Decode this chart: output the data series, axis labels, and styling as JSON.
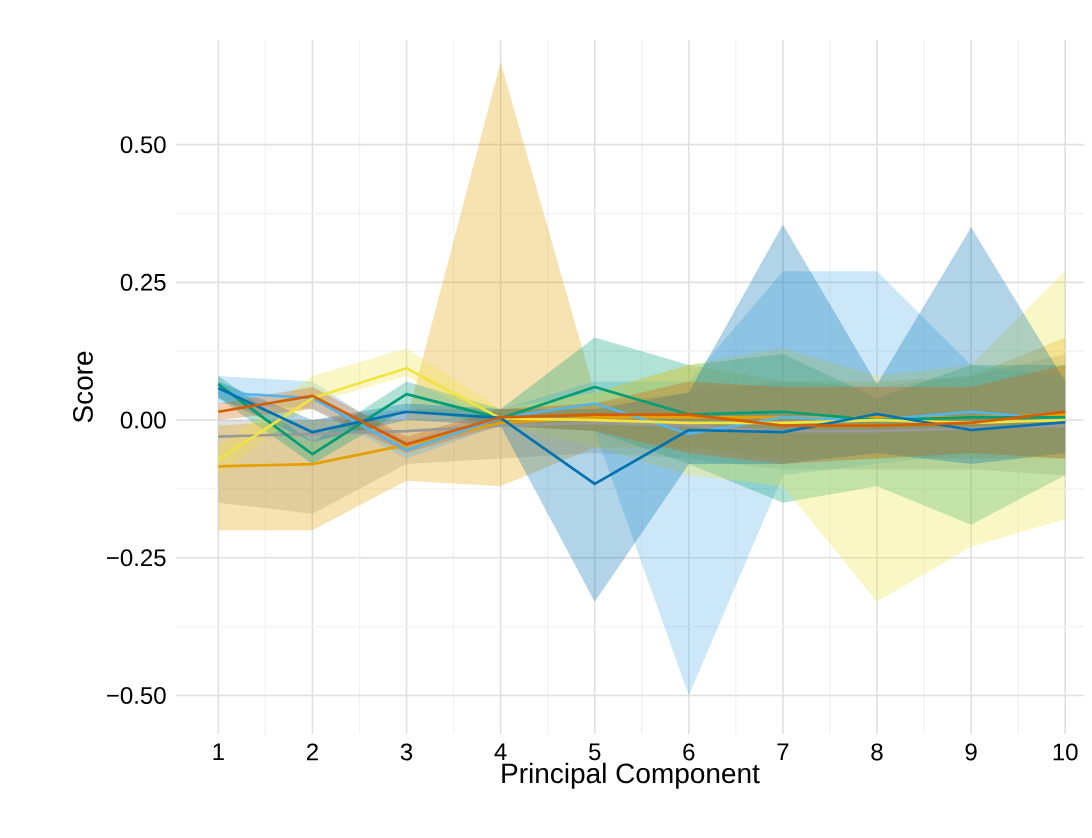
{
  "chart_data": {
    "type": "line",
    "xlabel": "Principal Component",
    "ylabel": "Score",
    "x": [
      1,
      2,
      3,
      4,
      5,
      6,
      7,
      8,
      9,
      10
    ],
    "xlim": [
      0.55,
      10.2
    ],
    "ylim": [
      -0.57,
      0.69
    ],
    "xticks": [
      1,
      2,
      3,
      4,
      5,
      6,
      7,
      8,
      9,
      10
    ],
    "yticks": [
      {
        "value": -0.5,
        "label": "−0.50"
      },
      {
        "value": -0.25,
        "label": "−0.25"
      },
      {
        "value": 0,
        "label": "0.00"
      },
      {
        "value": 0.25,
        "label": "0.25"
      },
      {
        "value": 0.5,
        "label": "0.50"
      }
    ],
    "grid": true,
    "series": [
      {
        "color": "#999999",
        "values": [
          -0.03,
          -0.025,
          -0.02,
          -0.01,
          -0.005,
          -0.01,
          -0.02,
          -0.02,
          -0.015,
          -0.01
        ],
        "lower": [
          -0.15,
          -0.17,
          -0.08,
          -0.07,
          -0.06,
          -0.07,
          -0.09,
          -0.09,
          -0.09,
          -0.1
        ],
        "upper": [
          0.0,
          0.0,
          0.02,
          0.02,
          0.03,
          0.05,
          0.07,
          0.06,
          0.08,
          0.12
        ]
      },
      {
        "color": "#E69F00",
        "values": [
          -0.084,
          -0.08,
          -0.045,
          -0.005,
          0.005,
          0.005,
          0.005,
          0.005,
          0.005,
          0.01
        ],
        "lower": [
          -0.2,
          -0.2,
          -0.11,
          -0.12,
          -0.05,
          -0.05,
          -0.07,
          -0.07,
          -0.07,
          -0.07
        ],
        "upper": [
          -0.01,
          0.0,
          0.0,
          0.65,
          0.05,
          0.1,
          0.07,
          0.07,
          0.08,
          0.15
        ]
      },
      {
        "color": "#56B4E9",
        "values": [
          0.05,
          0.04,
          -0.055,
          0.004,
          0.03,
          -0.025,
          0.005,
          0.0,
          0.015,
          0.0
        ],
        "lower": [
          0.03,
          0.02,
          -0.07,
          -0.01,
          -0.02,
          -0.5,
          -0.1,
          -0.08,
          -0.06,
          -0.07
        ],
        "upper": [
          0.08,
          0.07,
          -0.04,
          0.02,
          0.07,
          0.07,
          0.27,
          0.27,
          0.1,
          0.08
        ]
      },
      {
        "color": "#009E73",
        "values": [
          0.065,
          -0.062,
          0.047,
          0.003,
          0.06,
          0.01,
          0.015,
          0.0,
          0.005,
          0.005
        ],
        "lower": [
          0.04,
          -0.08,
          0.02,
          -0.01,
          -0.02,
          -0.08,
          -0.15,
          -0.12,
          -0.19,
          -0.1
        ],
        "upper": [
          0.08,
          -0.04,
          0.07,
          0.02,
          0.15,
          0.1,
          0.12,
          0.04,
          0.1,
          0.1
        ]
      },
      {
        "color": "#F0E442",
        "values": [
          -0.072,
          0.04,
          0.094,
          0.003,
          0.0,
          -0.005,
          -0.005,
          0.0,
          -0.005,
          0.0
        ],
        "lower": [
          -0.1,
          0.03,
          0.08,
          -0.01,
          -0.05,
          -0.1,
          -0.12,
          -0.33,
          -0.23,
          -0.18
        ],
        "upper": [
          -0.05,
          0.08,
          0.13,
          0.02,
          0.05,
          0.1,
          0.13,
          0.08,
          0.1,
          0.27
        ]
      },
      {
        "color": "#0072B2",
        "values": [
          0.058,
          -0.022,
          0.015,
          0.004,
          -0.116,
          -0.018,
          -0.022,
          0.011,
          -0.018,
          -0.004
        ],
        "lower": [
          0.04,
          -0.04,
          0.0,
          -0.01,
          -0.33,
          -0.08,
          -0.08,
          -0.06,
          -0.08,
          -0.06
        ],
        "upper": [
          0.07,
          0.0,
          0.03,
          0.02,
          0.02,
          0.05,
          0.355,
          0.065,
          0.35,
          0.07
        ]
      },
      {
        "color": "#D55E00",
        "values": [
          0.015,
          0.044,
          -0.044,
          0.005,
          0.01,
          0.01,
          -0.01,
          -0.01,
          -0.005,
          0.015
        ],
        "lower": [
          0.0,
          0.02,
          -0.06,
          -0.01,
          -0.02,
          -0.06,
          -0.08,
          -0.07,
          -0.06,
          -0.07
        ],
        "upper": [
          0.03,
          0.06,
          -0.03,
          0.02,
          0.03,
          0.07,
          0.06,
          0.06,
          0.06,
          0.1
        ]
      }
    ]
  }
}
